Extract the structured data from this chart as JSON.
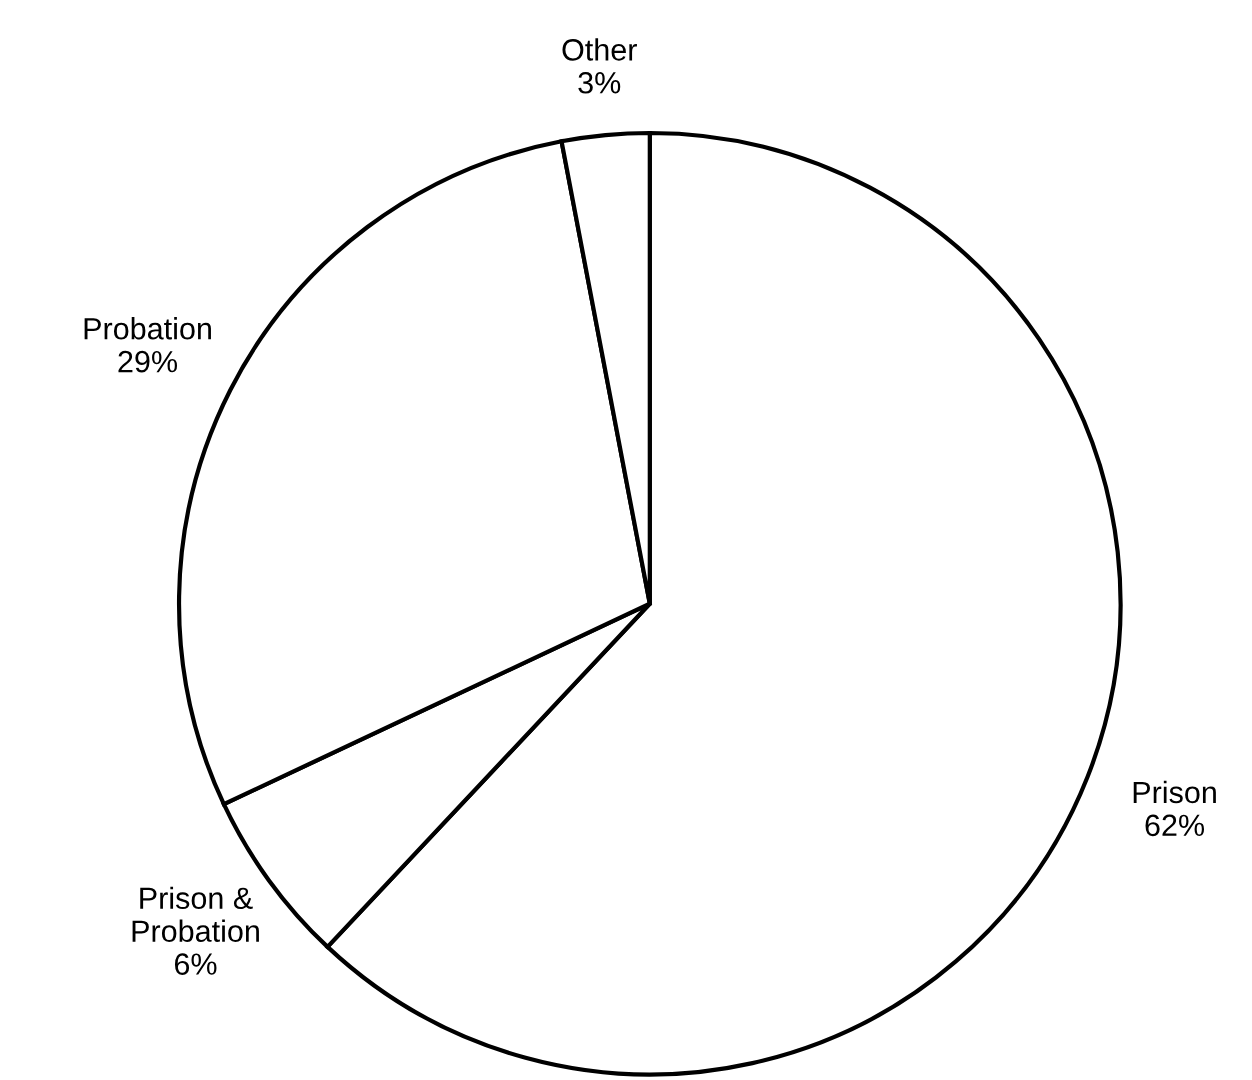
{
  "chart_data": {
    "type": "pie",
    "categories": [
      "Prison",
      "Prison & Probation",
      "Probation",
      "Other"
    ],
    "values": [
      62,
      6,
      29,
      3
    ],
    "value_labels": [
      "62%",
      "6%",
      "29%",
      "3%"
    ],
    "colors": [
      "#ffffff",
      "#ffffff",
      "#ffffff",
      "#ffffff"
    ],
    "legend": false
  }
}
